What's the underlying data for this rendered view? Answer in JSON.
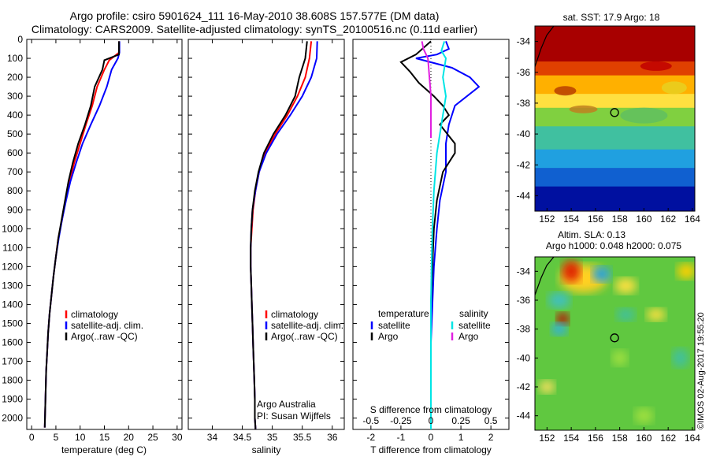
{
  "title": {
    "line1": "Argo profile: csiro 5901624_111 16-May-2010 38.608S 157.577E (DM data)",
    "line2": "Climatology: CARS2009. Satellite-adjusted climatology: synTS_20100516.nc (0.11d earlier)"
  },
  "credit": "Argo Australia",
  "pi": "PI: Susan Wijffels",
  "watermark": "©IMOS 02-Aug-2017 19:55:20",
  "colors": {
    "clim": "#ff0000",
    "sat": "#0000ff",
    "argo": "#000000",
    "cyan": "#00e5e5",
    "magenta": "#e020e0"
  },
  "chart_data": [
    {
      "type": "line",
      "name": "temperature",
      "xlabel": "temperature (deg C)",
      "ylabel": "",
      "xlim": [
        -1,
        31
      ],
      "ylim": [
        2060,
        0
      ],
      "xticks": [
        "0",
        "5",
        "10",
        "15",
        "20",
        "25",
        "30"
      ],
      "xtickvals": [
        0,
        5,
        10,
        15,
        20,
        25,
        30
      ],
      "yticks": [
        "0",
        "100",
        "200",
        "300",
        "400",
        "500",
        "600",
        "700",
        "800",
        "900",
        "1000",
        "1100",
        "1200",
        "1300",
        "1400",
        "1500",
        "1600",
        "1700",
        "1800",
        "1900",
        "2000"
      ],
      "ytickvals": [
        0,
        100,
        200,
        300,
        400,
        500,
        600,
        700,
        800,
        900,
        1000,
        1100,
        1200,
        1300,
        1400,
        1500,
        1600,
        1700,
        1800,
        1900,
        2000
      ],
      "legend": [
        "climatology",
        "satellite-adj. clim.",
        "Argo(..raw -QC)"
      ],
      "series": [
        {
          "name": "climatology",
          "color": "#ff0000",
          "x": [
            18.0,
            18.0,
            16.0,
            15.0,
            13.5,
            12.5,
            11.2,
            10.0,
            8.8,
            7.8,
            7.0,
            6.3,
            5.5,
            5.0,
            4.5,
            4.1,
            3.7,
            3.4,
            3.2,
            3.0,
            2.9,
            2.8,
            2.7
          ],
          "y": [
            10,
            70,
            110,
            160,
            250,
            350,
            450,
            550,
            650,
            750,
            850,
            950,
            1050,
            1150,
            1250,
            1350,
            1450,
            1550,
            1650,
            1750,
            1850,
            1950,
            2050
          ]
        },
        {
          "name": "satellite",
          "color": "#0000ff",
          "x": [
            18.1,
            18.1,
            17.8,
            16.5,
            15.5,
            14.0,
            12.2,
            10.5,
            9.2,
            8.0,
            7.1,
            6.3,
            5.6,
            5.0,
            4.5,
            4.1,
            3.7,
            3.4,
            3.2,
            3.0,
            2.9,
            2.8,
            2.7
          ],
          "y": [
            10,
            70,
            100,
            160,
            250,
            350,
            450,
            550,
            650,
            750,
            850,
            950,
            1050,
            1150,
            1250,
            1350,
            1450,
            1550,
            1650,
            1750,
            1850,
            1950,
            2050
          ]
        },
        {
          "name": "argo",
          "color": "#000000",
          "x": [
            18.0,
            18.0,
            15.0,
            14.6,
            13.0,
            12.2,
            11.0,
            9.6,
            8.5,
            7.6,
            6.9,
            6.2,
            5.5,
            5.0,
            4.5,
            4.1,
            3.7,
            3.4,
            3.2,
            3.0,
            2.9,
            2.8,
            2.7
          ],
          "y": [
            10,
            80,
            110,
            160,
            250,
            350,
            450,
            550,
            650,
            750,
            850,
            950,
            1050,
            1150,
            1250,
            1350,
            1450,
            1550,
            1650,
            1750,
            1850,
            1950,
            2050
          ]
        }
      ]
    },
    {
      "type": "line",
      "name": "salinity",
      "xlabel": "salinity",
      "xlim": [
        33.6,
        36.2
      ],
      "ylim": [
        2060,
        0
      ],
      "xticks": [
        "34",
        "34.5",
        "35",
        "35.5",
        "36"
      ],
      "xtickvals": [
        34,
        34.5,
        35,
        35.5,
        36
      ],
      "legend": [
        "climatology",
        "satellite-adj. clim.",
        "Argo(..raw -QC)"
      ],
      "series": [
        {
          "name": "climatology",
          "color": "#ff0000",
          "x": [
            35.65,
            35.62,
            35.55,
            35.42,
            35.25,
            35.05,
            34.88,
            34.78,
            34.72,
            34.68,
            34.66,
            34.64,
            34.64,
            34.65,
            34.66,
            34.67,
            34.68,
            34.69,
            34.7,
            34.71,
            34.71,
            34.72,
            34.72
          ],
          "y": [
            10,
            100,
            200,
            300,
            400,
            500,
            600,
            700,
            800,
            900,
            1000,
            1100,
            1200,
            1300,
            1400,
            1500,
            1600,
            1700,
            1800,
            1900,
            2000,
            2050,
            2060
          ]
        },
        {
          "name": "satellite",
          "color": "#0000ff",
          "x": [
            35.75,
            35.74,
            35.65,
            35.5,
            35.3,
            35.08,
            34.9,
            34.78,
            34.72,
            34.67,
            34.65,
            34.64,
            34.64,
            34.65,
            34.66,
            34.67,
            34.68,
            34.69,
            34.7,
            34.71,
            34.71,
            34.72,
            34.72
          ],
          "y": [
            10,
            100,
            200,
            300,
            400,
            500,
            600,
            700,
            800,
            900,
            1000,
            1100,
            1200,
            1300,
            1400,
            1500,
            1600,
            1700,
            1800,
            1900,
            2000,
            2050,
            2060
          ]
        },
        {
          "name": "argo",
          "color": "#000000",
          "x": [
            35.58,
            35.55,
            35.45,
            35.38,
            35.22,
            35.02,
            34.86,
            34.77,
            34.71,
            34.67,
            34.65,
            34.64,
            34.64,
            34.65,
            34.66,
            34.67,
            34.68,
            34.69,
            34.7,
            34.71,
            34.71,
            34.72,
            34.72
          ],
          "y": [
            10,
            100,
            200,
            300,
            400,
            500,
            600,
            700,
            800,
            900,
            1000,
            1100,
            1200,
            1300,
            1400,
            1500,
            1600,
            1700,
            1800,
            1900,
            2000,
            2050,
            2060
          ]
        }
      ]
    },
    {
      "type": "line",
      "name": "differences",
      "xlabel_t": "T difference from climatology",
      "xlabel_s": "S difference from climatology",
      "xlim": [
        -2.6,
        2.6
      ],
      "ylim": [
        2060,
        0
      ],
      "xticks_t": [
        "-2",
        "-1",
        "0",
        "1",
        "2"
      ],
      "xtickvals_t": [
        -2,
        -1,
        0,
        1,
        2
      ],
      "xticks_s": [
        "-0.5",
        "-0.25",
        "0",
        "0.25",
        "0.5"
      ],
      "xtickvals_s": [
        -0.5,
        -0.25,
        0,
        0.25,
        0.5
      ],
      "legend": {
        "temperature": "temperature",
        "salinity": "salinity",
        "t_sat": "satellite",
        "t_argo": "Argo",
        "s_sat": "satellite",
        "s_argo": "Argo"
      },
      "series": [
        {
          "name": "T satellite",
          "color": "#0000ff",
          "x": [
            0.5,
            0.6,
            0.2,
            -0.5,
            0.7,
            1.3,
            1.6,
            0.8,
            0.6,
            0.5,
            0.5,
            0.3,
            0.2,
            0.1,
            0.05,
            0.0,
            0.0,
            0.0,
            0.0,
            0.0
          ],
          "y": [
            10,
            50,
            80,
            100,
            150,
            200,
            250,
            350,
            450,
            550,
            700,
            850,
            1000,
            1200,
            1400,
            1600,
            1800,
            1950,
            2050,
            2060
          ]
        },
        {
          "name": "T Argo",
          "color": "#000000",
          "x": [
            0.0,
            -0.5,
            -1.0,
            -0.7,
            -0.4,
            0.1,
            0.4,
            0.6,
            0.3,
            0.8,
            0.8,
            0.4,
            0.2,
            0.1,
            0.05,
            0.0,
            0.0,
            0.0,
            0.0,
            0.0
          ],
          "y": [
            10,
            80,
            120,
            170,
            230,
            300,
            350,
            400,
            450,
            550,
            600,
            700,
            850,
            1000,
            1200,
            1400,
            1600,
            1800,
            2000,
            2060
          ]
        },
        {
          "name": "S satellite",
          "color": "#00e5e5",
          "x": [
            0.45,
            0.35,
            0.5,
            0.4,
            0.5,
            0.4,
            0.3,
            0.2,
            0.1,
            0.05,
            0.02,
            0.0,
            0.0,
            0.0,
            0.0
          ],
          "y": [
            10,
            60,
            100,
            200,
            300,
            400,
            500,
            600,
            800,
            1000,
            1200,
            1400,
            1600,
            1800,
            2060
          ]
        },
        {
          "name": "S Argo",
          "color": "#e020e0",
          "x": [
            -0.3,
            -0.25,
            -0.1,
            -0.05,
            0.0,
            0.0,
            0.0,
            0.0
          ],
          "y": [
            10,
            50,
            100,
            200,
            300,
            400,
            500,
            520
          ]
        }
      ]
    },
    {
      "type": "heatmap",
      "name": "sst-map",
      "title": "sat. SST: 17.9  Argo: 18",
      "xticks": [
        "152",
        "154",
        "156",
        "158",
        "160",
        "162",
        "164"
      ],
      "xtickvals": [
        152,
        154,
        156,
        158,
        160,
        162,
        164
      ],
      "yticks": [
        "-34",
        "-36",
        "-38",
        "-40",
        "-42",
        "-44"
      ],
      "ytickvals": [
        -34,
        -36,
        -38,
        -40,
        -42,
        -44
      ],
      "xlim": [
        151,
        164.2
      ],
      "ylim": [
        -45,
        -33
      ],
      "profile": {
        "lon": 157.577,
        "lat": -38.608
      }
    },
    {
      "type": "heatmap",
      "name": "sla-map",
      "title": "Altim. SLA: 0.13",
      "subtitle": "Argo h1000: 0.048  h2000: 0.075",
      "xticks": [
        "152",
        "154",
        "156",
        "158",
        "160",
        "162",
        "164"
      ],
      "xtickvals": [
        152,
        154,
        156,
        158,
        160,
        162,
        164
      ],
      "yticks": [
        "-34",
        "-36",
        "-38",
        "-40",
        "-42",
        "-44"
      ],
      "ytickvals": [
        -34,
        -36,
        -38,
        -40,
        -42,
        -44
      ],
      "xlim": [
        151,
        164.2
      ],
      "ylim": [
        -45,
        -33
      ],
      "profile": {
        "lon": 157.577,
        "lat": -38.608
      }
    }
  ]
}
